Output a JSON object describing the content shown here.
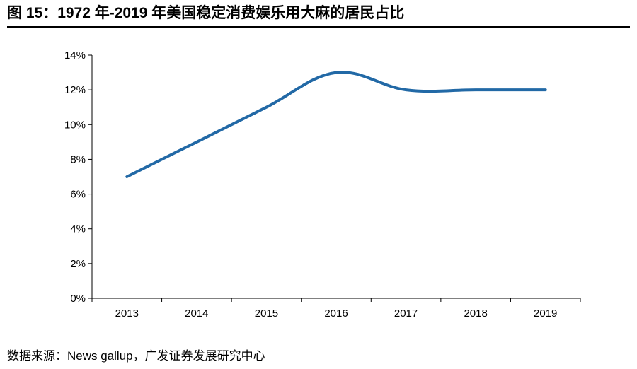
{
  "figure_title": "图 15：1972 年-2019 年美国稳定消费娱乐用大麻的居民占比",
  "source_note": "数据来源：News gallup，广发证券发展研究中心",
  "colors": {
    "line": "#2269a6",
    "axis": "#000000"
  },
  "chart_data": {
    "type": "line",
    "title": "",
    "xlabel": "",
    "ylabel": "",
    "categories": [
      "2013",
      "2014",
      "2015",
      "2016",
      "2017",
      "2018",
      "2019"
    ],
    "series": [
      {
        "values": [
          7,
          9,
          11,
          13,
          12,
          12,
          12
        ]
      }
    ],
    "ylim": [
      0,
      14
    ],
    "yticks": [
      0,
      2,
      4,
      6,
      8,
      10,
      12,
      14
    ],
    "ytick_labels": [
      "0%",
      "2%",
      "4%",
      "6%",
      "8%",
      "10%",
      "12%",
      "14%"
    ],
    "grid": false,
    "legend": "none"
  }
}
